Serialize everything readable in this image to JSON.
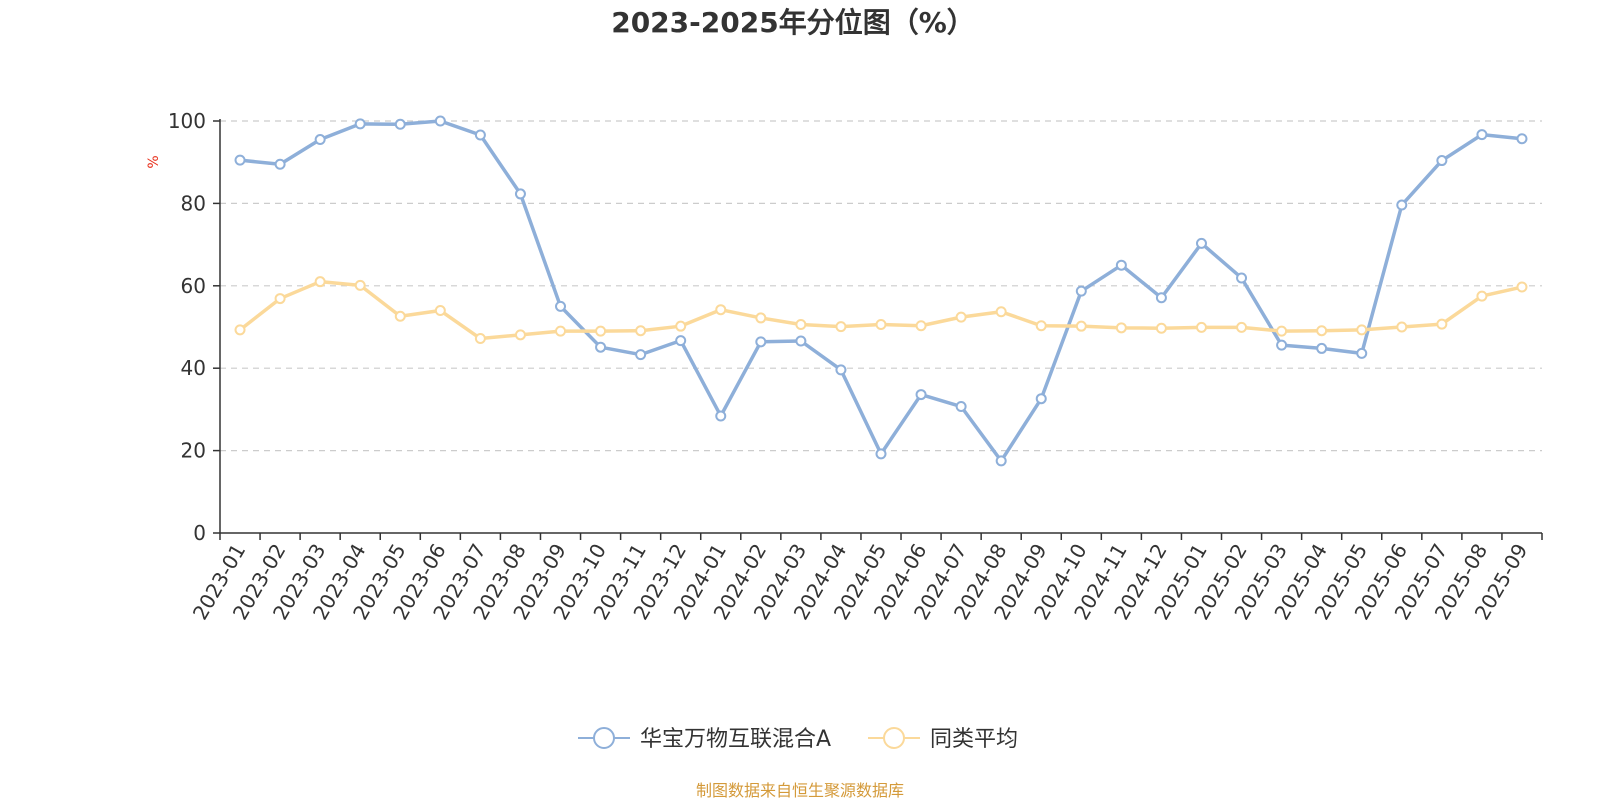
{
  "colors": {
    "series1": "#8eafd9",
    "series2": "#fbd99a",
    "ylabel": "#e8301c",
    "source": "#d49a3a",
    "grid": "#cccccc",
    "axis": "#333333"
  },
  "source_text": "制图数据来自恒生聚源数据库",
  "chart_data": {
    "type": "line",
    "title": "2023-2025年分位图（%）",
    "xlabel": "",
    "ylabel": "%",
    "ylim": [
      0,
      100
    ],
    "yticks": [
      "0",
      "20",
      "40",
      "60",
      "80",
      "100"
    ],
    "grid": "horizontal-dashed",
    "legend_position": "bottom-center",
    "categories": [
      "2023-01",
      "2023-02",
      "2023-03",
      "2023-04",
      "2023-05",
      "2023-06",
      "2023-07",
      "2023-08",
      "2023-09",
      "2023-10",
      "2023-11",
      "2023-12",
      "2024-01",
      "2024-02",
      "2024-03",
      "2024-04",
      "2024-05",
      "2024-06",
      "2024-07",
      "2024-08",
      "2024-09",
      "2024-10",
      "2024-11",
      "2024-12",
      "2025-01",
      "2025-02",
      "2025-03",
      "2025-04",
      "2025-05",
      "2025-06",
      "2025-07",
      "2025-08",
      "2025-09"
    ],
    "series": [
      {
        "name": "华宝万物互联混合A",
        "values": [
          90.5,
          89.5,
          95.5,
          99.3,
          99.2,
          100,
          96.6,
          82.3,
          55.0,
          45.1,
          43.3,
          46.7,
          28.4,
          46.4,
          46.6,
          39.6,
          19.2,
          33.6,
          30.7,
          17.5,
          32.6,
          58.7,
          65.0,
          57.1,
          70.3,
          61.9,
          45.6,
          44.8,
          43.6,
          79.6,
          90.4,
          96.7,
          95.7
        ]
      },
      {
        "name": "同类平均",
        "values": [
          49.3,
          56.9,
          61.0,
          60.1,
          52.6,
          54.0,
          47.2,
          48.1,
          49.0,
          49.0,
          49.1,
          50.2,
          54.2,
          52.2,
          50.6,
          50.1,
          50.6,
          50.3,
          52.4,
          53.7,
          50.3,
          50.2,
          49.8,
          49.7,
          49.9,
          49.9,
          49.0,
          49.1,
          49.3,
          50.0,
          50.7,
          57.5,
          59.7
        ]
      }
    ]
  }
}
